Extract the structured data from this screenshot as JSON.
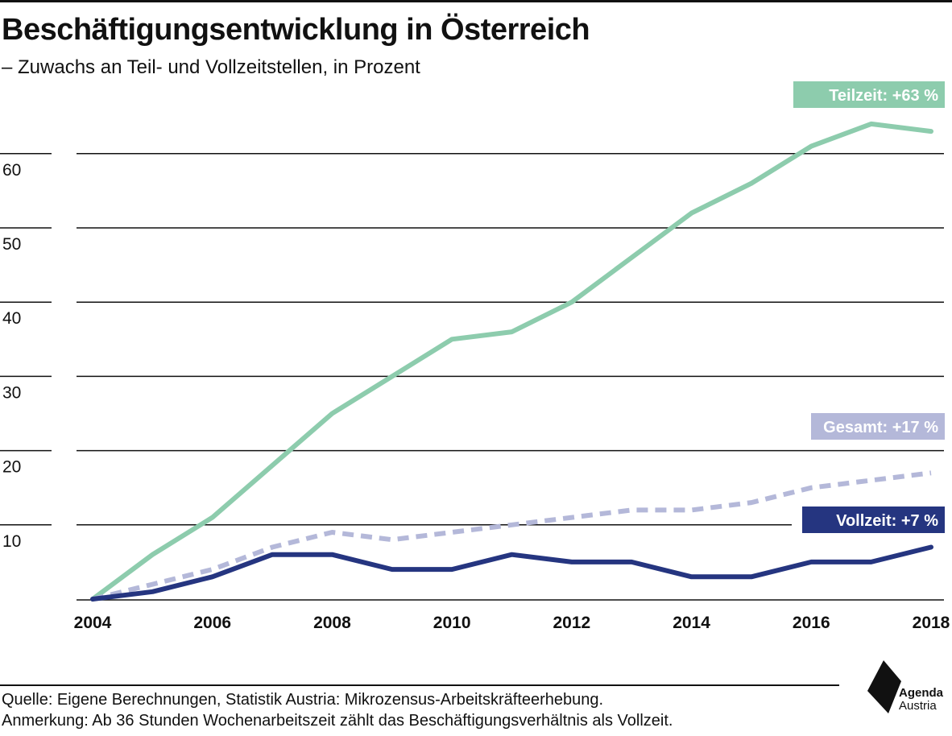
{
  "header": {
    "title": "Beschäftigungsentwicklung in Österreich",
    "subtitle": "– Zuwachs an Teil- und Vollzeitstellen, in Prozent"
  },
  "chart_data": {
    "type": "line",
    "title": "Beschäftigungsentwicklung in Österreich",
    "subtitle": "– Zuwachs an Teil- und Vollzeitstellen, in Prozent",
    "xlabel": "",
    "ylabel": "",
    "x": [
      2004,
      2005,
      2006,
      2007,
      2008,
      2009,
      2010,
      2011,
      2012,
      2013,
      2014,
      2015,
      2016,
      2017,
      2018
    ],
    "x_ticks": [
      2004,
      2006,
      2008,
      2010,
      2012,
      2014,
      2016,
      2018
    ],
    "y_ticks": [
      10,
      20,
      30,
      40,
      50,
      60
    ],
    "xlim": [
      2004,
      2018
    ],
    "ylim": [
      0,
      60
    ],
    "grid": true,
    "series": [
      {
        "name": "Teilzeit",
        "label": "Teilzeit: +63 %",
        "color": "#8dccad",
        "style": "solid",
        "values": [
          0,
          6,
          11,
          18,
          25,
          30,
          35,
          36,
          40,
          46,
          52,
          56,
          61,
          64,
          63
        ]
      },
      {
        "name": "Gesamt",
        "label": "Gesamt: +17 %",
        "color": "#b4b8d9",
        "style": "dashed",
        "values": [
          0,
          2,
          4,
          7,
          9,
          8,
          9,
          10,
          11,
          12,
          12,
          13,
          15,
          16,
          17
        ]
      },
      {
        "name": "Vollzeit",
        "label": "Vollzeit: +7 %",
        "color": "#253580",
        "style": "solid",
        "values": [
          0,
          1,
          3,
          6,
          6,
          4,
          4,
          6,
          5,
          5,
          3,
          3,
          5,
          5,
          7
        ]
      }
    ]
  },
  "footer": {
    "source": "Quelle: Eigene Berechnungen, Statistik Austria: Mikrozensus-Arbeitskräfteerhebung.",
    "note": "Anmerkung: Ab 36 Stunden Wochenarbeitszeit zählt das Beschäftigungsverhältnis als Vollzeit."
  },
  "logo": {
    "line1": "Agenda",
    "line2": "Austria",
    "color": "#111111"
  }
}
